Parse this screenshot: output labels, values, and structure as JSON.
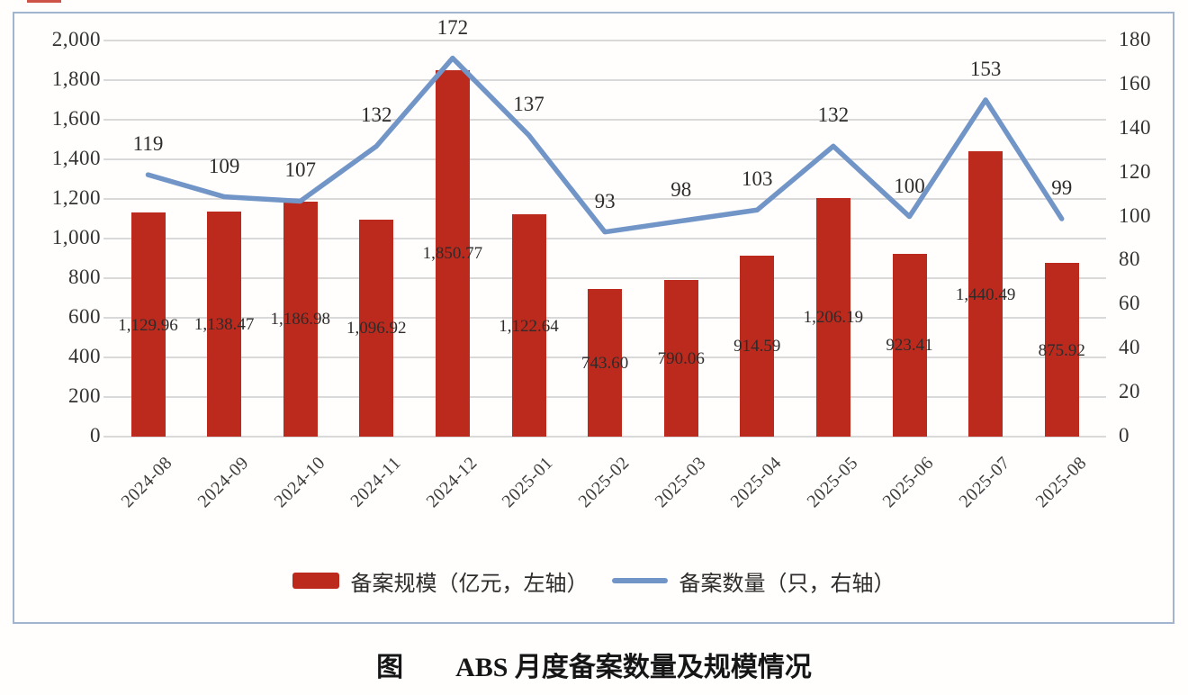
{
  "figure": {
    "caption_prefix": "图",
    "caption_title": "ABS 月度备案数量及规模情况"
  },
  "chart_data": {
    "type": "combo-bar-line",
    "categories": [
      "2024-08",
      "2024-09",
      "2024-10",
      "2024-11",
      "2024-12",
      "2025-01",
      "2025-02",
      "2025-03",
      "2025-04",
      "2025-05",
      "2025-06",
      "2025-07",
      "2025-08"
    ],
    "series": [
      {
        "name": "备案规模（亿元，左轴）",
        "type": "bar",
        "axis": "left",
        "color": "#bb2a1d",
        "values": [
          1129.96,
          1138.47,
          1186.98,
          1096.92,
          1850.77,
          1122.64,
          743.6,
          790.06,
          914.59,
          1206.19,
          923.41,
          1440.49,
          875.92
        ],
        "labels": [
          "1,129.96",
          "1,138.47",
          "1,186.98",
          "1,096.92",
          "1,850.77",
          "1,122.64",
          "743.60",
          "790.06",
          "914.59",
          "1,206.19",
          "923.41",
          "1,440.49",
          "875.92"
        ]
      },
      {
        "name": "备案数量（只，右轴）",
        "type": "line",
        "axis": "right",
        "color": "#7195c7",
        "values": [
          119,
          109,
          107,
          132,
          172,
          137,
          93,
          98,
          103,
          132,
          100,
          153,
          99
        ]
      }
    ],
    "left_axis": {
      "min": 0,
      "max": 2000,
      "step": 200,
      "ticks": [
        "0",
        "200",
        "400",
        "600",
        "800",
        "1,000",
        "1,200",
        "1,400",
        "1,600",
        "1,800",
        "2,000"
      ]
    },
    "right_axis": {
      "min": 0,
      "max": 180,
      "step": 20,
      "ticks": [
        "0",
        "20",
        "40",
        "60",
        "80",
        "100",
        "120",
        "140",
        "160",
        "180"
      ]
    },
    "grid": "horizontal-left-axis",
    "legend_position": "bottom"
  },
  "colors": {
    "bar": "#bb2a1d",
    "line": "#7195c7",
    "frame_border": "#a3b4cf",
    "gridline": "#d9d9d9",
    "text": "#333333"
  }
}
